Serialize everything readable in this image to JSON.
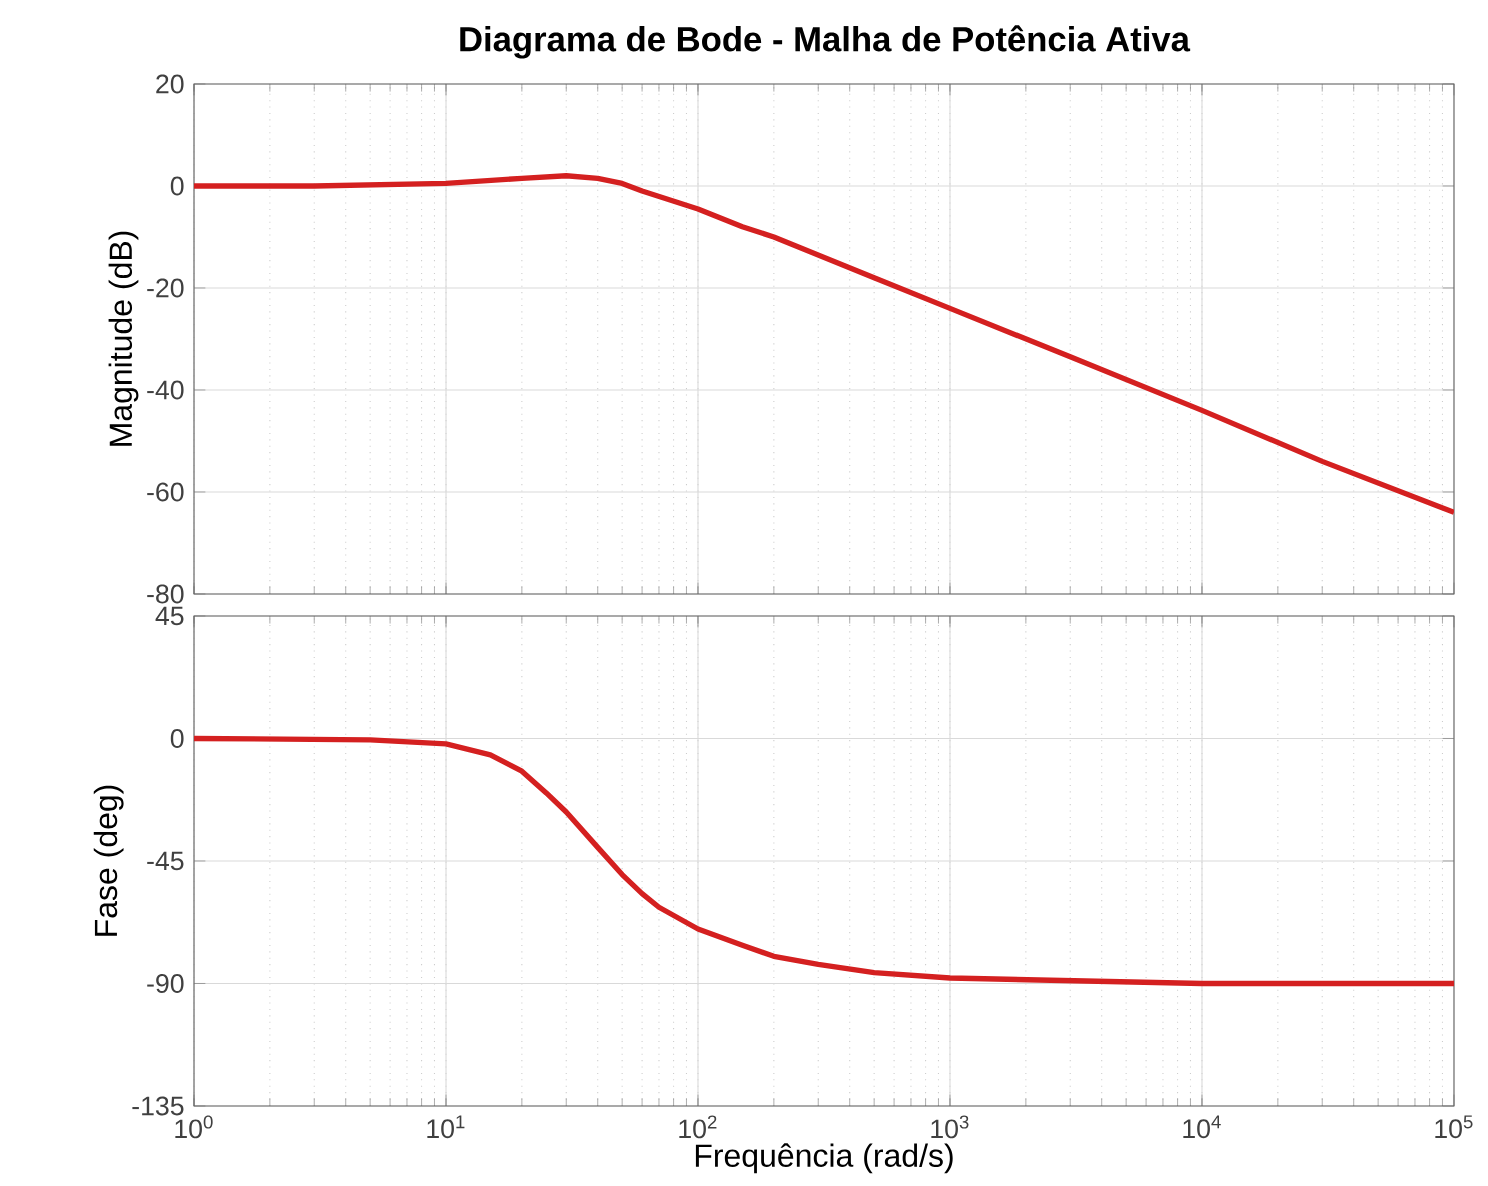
{
  "chart_data": [
    {
      "type": "line",
      "title": "Diagrama de Bode - Malha de Potência Ativa",
      "ylabel": "Magnitude (dB)",
      "log": "x",
      "grid": true,
      "tick_labels": "y",
      "xlim": [
        1,
        100000
      ],
      "xticks": [
        {
          "value": 1,
          "label": null
        },
        {
          "value": 10,
          "label": null
        },
        {
          "value": 100,
          "label": null
        },
        {
          "value": 1000,
          "label": null
        },
        {
          "value": 10000,
          "label": null
        },
        {
          "value": 100000,
          "label": null
        }
      ],
      "ylim": [
        -80,
        20
      ],
      "yticks": [
        -80,
        -60,
        -40,
        -20,
        0,
        20
      ],
      "x": [
        1,
        3,
        10,
        20,
        30,
        40,
        50,
        60,
        100,
        150,
        200,
        500,
        1000,
        3000,
        10000,
        30000,
        100000
      ],
      "series": [
        {
          "color": "#d42020",
          "values": [
            0,
            0,
            0.5,
            1.5,
            2,
            1.5,
            0.5,
            -1,
            -4.5,
            -8,
            -10,
            -18,
            -24,
            -33.5,
            -44,
            -54,
            -64
          ]
        }
      ]
    },
    {
      "type": "line",
      "xlabel": "Frequência  (rad/s)",
      "ylabel": "Fase (deg)",
      "log": "x",
      "grid": true,
      "xlim": [
        1,
        100000
      ],
      "xticks": [
        {
          "value": 1,
          "label": "10$^{0}$"
        },
        {
          "value": 10,
          "label": "10$^{1}$"
        },
        {
          "value": 100,
          "label": "10$^{2}$"
        },
        {
          "value": 1000,
          "label": "10$^{3}$"
        },
        {
          "value": 10000,
          "label": "10$^{4}$"
        },
        {
          "value": 100000,
          "label": "10$^{5}$"
        }
      ],
      "ylim": [
        -135,
        45
      ],
      "yticks": [
        -135,
        -90,
        -45,
        0,
        45
      ],
      "x": [
        1,
        5,
        10,
        15,
        20,
        25,
        30,
        40,
        50,
        60,
        70,
        100,
        150,
        200,
        300,
        500,
        1000,
        10000,
        100000
      ],
      "series": [
        {
          "color": "#d42020",
          "values": [
            0,
            -0.5,
            -2,
            -6,
            -12,
            -20,
            -27,
            -40,
            -50,
            -57,
            -62,
            -70,
            -76,
            -80,
            -83,
            -86,
            -88,
            -90,
            -90
          ]
        }
      ]
    }
  ]
}
